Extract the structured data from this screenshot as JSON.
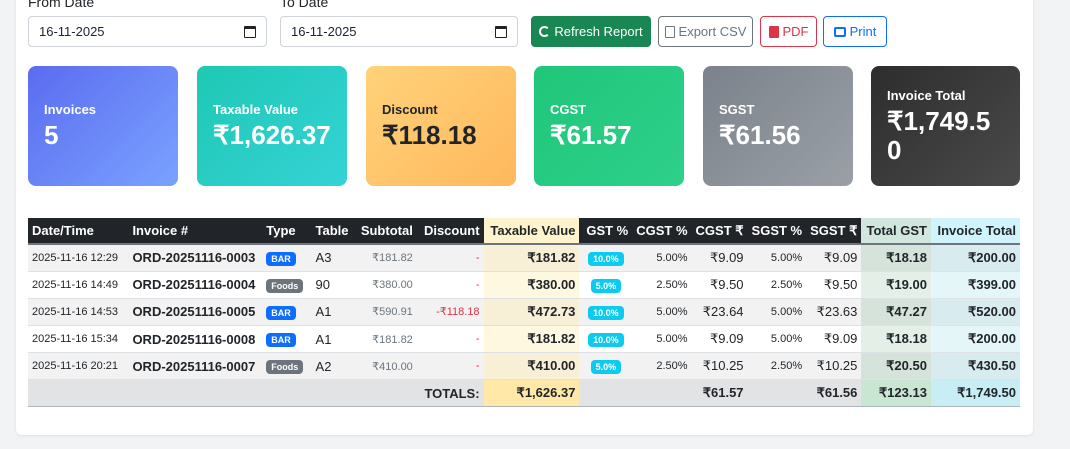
{
  "filters": {
    "from_label": "From Date",
    "from_value": "16-11-2025",
    "to_label": "To Date",
    "to_value": "16-11-2025"
  },
  "actions": {
    "refresh": "Refresh Report",
    "csv": "Export CSV",
    "pdf": "PDF",
    "print": "Print"
  },
  "summary": [
    {
      "label": "Invoices",
      "value": "5"
    },
    {
      "label": "Taxable Value",
      "value": "₹1,626.37"
    },
    {
      "label": "Discount",
      "value": "₹118.18"
    },
    {
      "label": "CGST",
      "value": "₹61.57"
    },
    {
      "label": "SGST",
      "value": "₹61.56"
    },
    {
      "label": "Invoice Total",
      "value": "₹1,749.50"
    }
  ],
  "table": {
    "headers": [
      "Date/Time",
      "Invoice #",
      "Type",
      "Table",
      "Subtotal",
      "Discount",
      "Taxable Value",
      "GST %",
      "CGST %",
      "CGST ₹",
      "SGST %",
      "SGST ₹",
      "Total GST",
      "Invoice Total"
    ],
    "rows": [
      {
        "datetime": "2025-11-16 12:29",
        "invoice": "ORD-20251116-0003",
        "type": "BAR",
        "table": "A3",
        "subtotal": "₹181.82",
        "discount": "-",
        "taxable": "₹181.82",
        "gst": "10.0%",
        "cgst_pct": "5.00%",
        "cgst": "₹9.09",
        "sgst_pct": "5.00%",
        "sgst": "₹9.09",
        "total_gst": "₹18.18",
        "invoice_total": "₹200.00"
      },
      {
        "datetime": "2025-11-16 14:49",
        "invoice": "ORD-20251116-0004",
        "type": "Foods",
        "table": "90",
        "subtotal": "₹380.00",
        "discount": "-",
        "taxable": "₹380.00",
        "gst": "5.0%",
        "cgst_pct": "2.50%",
        "cgst": "₹9.50",
        "sgst_pct": "2.50%",
        "sgst": "₹9.50",
        "total_gst": "₹19.00",
        "invoice_total": "₹399.00"
      },
      {
        "datetime": "2025-11-16 14:53",
        "invoice": "ORD-20251116-0005",
        "type": "BAR",
        "table": "A1",
        "subtotal": "₹590.91",
        "discount": "-₹118.18",
        "taxable": "₹472.73",
        "gst": "10.0%",
        "cgst_pct": "5.00%",
        "cgst": "₹23.64",
        "sgst_pct": "5.00%",
        "sgst": "₹23.63",
        "total_gst": "₹47.27",
        "invoice_total": "₹520.00"
      },
      {
        "datetime": "2025-11-16 15:34",
        "invoice": "ORD-20251116-0008",
        "type": "BAR",
        "table": "A1",
        "subtotal": "₹181.82",
        "discount": "-",
        "taxable": "₹181.82",
        "gst": "10.0%",
        "cgst_pct": "5.00%",
        "cgst": "₹9.09",
        "sgst_pct": "5.00%",
        "sgst": "₹9.09",
        "total_gst": "₹18.18",
        "invoice_total": "₹200.00"
      },
      {
        "datetime": "2025-11-16 20:21",
        "invoice": "ORD-20251116-0007",
        "type": "Foods",
        "table": "A2",
        "subtotal": "₹410.00",
        "discount": "-",
        "taxable": "₹410.00",
        "gst": "5.0%",
        "cgst_pct": "2.50%",
        "cgst": "₹10.25",
        "sgst_pct": "2.50%",
        "sgst": "₹10.25",
        "total_gst": "₹20.50",
        "invoice_total": "₹430.50"
      }
    ],
    "totals": {
      "label": "TOTALS:",
      "taxable": "₹1,626.37",
      "cgst": "₹61.57",
      "sgst": "₹61.56",
      "total_gst": "₹123.13",
      "invoice_total": "₹1,749.50"
    }
  },
  "icons": {
    "refresh": "refresh-icon",
    "csv": "file-csv-icon",
    "pdf": "file-pdf-icon",
    "print": "printer-icon",
    "calendar": "calendar-icon"
  },
  "colors": {
    "success": "#198754",
    "secondary": "#6c757d",
    "danger": "#dc3545",
    "primary": "#0d6efd",
    "info": "#0dcaf0"
  }
}
